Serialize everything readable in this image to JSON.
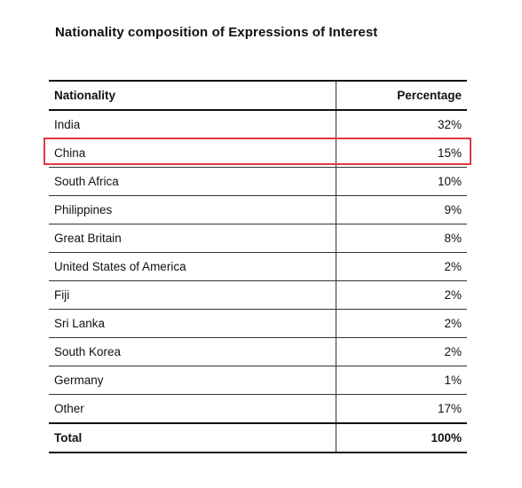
{
  "title": "Nationality composition of Expressions of Interest",
  "columns": [
    "Nationality",
    "Percentage"
  ],
  "rows": [
    {
      "nationality": "India",
      "percentage": "32%"
    },
    {
      "nationality": "China",
      "percentage": "15%",
      "highlighted": true
    },
    {
      "nationality": "South Africa",
      "percentage": "10%"
    },
    {
      "nationality": "Philippines",
      "percentage": "9%"
    },
    {
      "nationality": "Great Britain",
      "percentage": "8%"
    },
    {
      "nationality": "United States of America",
      "percentage": "2%"
    },
    {
      "nationality": "Fiji",
      "percentage": "2%"
    },
    {
      "nationality": "Sri Lanka",
      "percentage": "2%"
    },
    {
      "nationality": "South Korea",
      "percentage": "2%"
    },
    {
      "nationality": "Germany",
      "percentage": "1%"
    },
    {
      "nationality": "Other",
      "percentage": "17%"
    }
  ],
  "total": {
    "label": "Total",
    "value": "100%"
  },
  "highlight_color": "#e03a3e"
}
